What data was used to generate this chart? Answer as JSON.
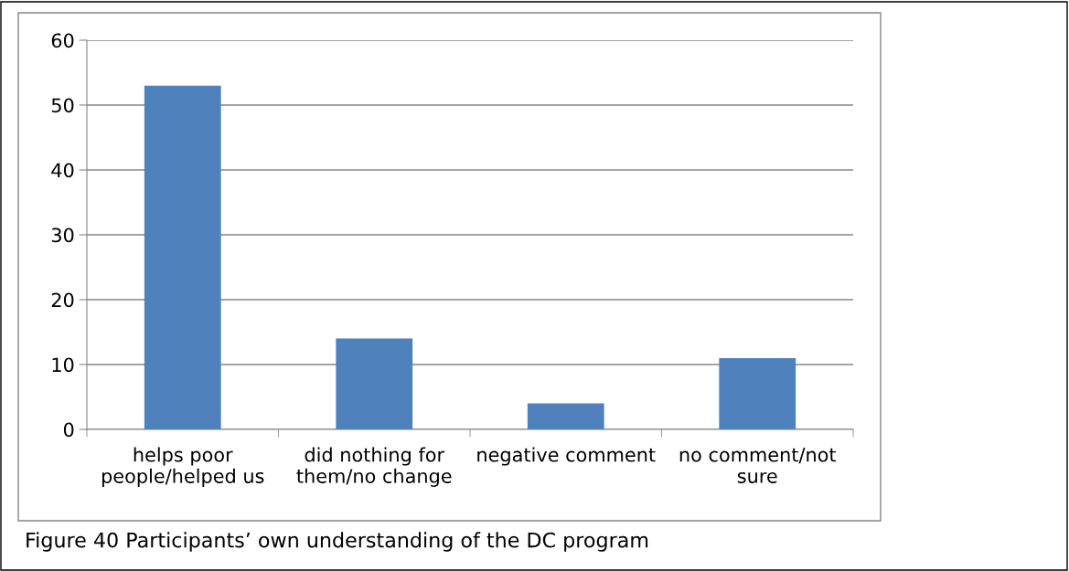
{
  "chart_data": {
    "type": "bar",
    "categories": [
      "helps poor\npeople/helped us",
      "did nothing for\nthem/no change",
      "negative comment",
      "no comment/not\nsure"
    ],
    "values": [
      53,
      14,
      4,
      11
    ],
    "color": "#4f81bd",
    "ylim": [
      0,
      60
    ],
    "yticks": [
      0,
      10,
      20,
      30,
      40,
      50,
      60
    ],
    "grid": "y",
    "legend": false,
    "annotations": [
      "Figure 40 Participants’ own understanding of the DC program"
    ]
  }
}
